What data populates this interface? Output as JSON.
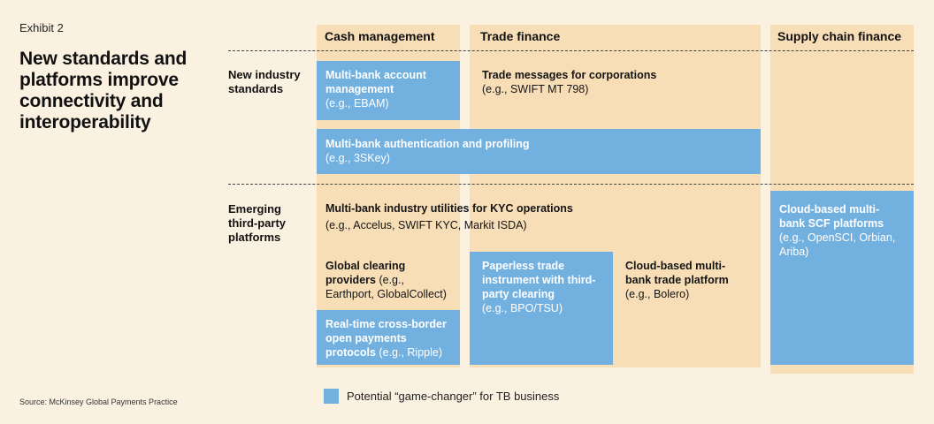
{
  "exhibit_label": "Exhibit 2",
  "title": "New standards and platforms improve connectivity and interoperability",
  "source": "Source: McKinsey Global Payments Practice",
  "columns": {
    "cash": "Cash management",
    "trade": "Trade finance",
    "scf": "Supply chain finance"
  },
  "rows": {
    "standards": "New industry standards",
    "platforms": "Emerging third-party platforms"
  },
  "cells": {
    "ebam": {
      "bold": "Multi-bank account management",
      "plain": "(e.g., EBAM)"
    },
    "trade_msgs": {
      "bold": "Trade messages for corporations",
      "plain": "(e.g., SWIFT MT 798)"
    },
    "auth": {
      "bold": "Multi-bank authentication and profiling",
      "plain": "(e.g., 3SKey)"
    },
    "kyc": {
      "bold": "Multi-bank industry utilities for KYC operations",
      "plain": "(e.g., Accelus, SWIFT KYC, Markit ISDA)"
    },
    "clearing": {
      "bold": "Global clearing providers",
      "plain1": " (e.g.,",
      "plain2": "Earthport, GlobalCollect)"
    },
    "realtime": {
      "bold": "Real-time cross-border open payments protocols",
      "plain": " (e.g., Ripple)"
    },
    "paperless": {
      "bold": "Paperless trade instrument with third-party clearing",
      "plain": "(e.g., BPO/TSU)"
    },
    "cloud_trade": {
      "bold": "Cloud-based multi-bank trade platform",
      "plain": "(e.g., Bolero)"
    },
    "cloud_scf": {
      "bold": "Cloud-based multi-bank SCF platforms",
      "plain": "(e.g., OpenSCI, Orbian, Ariba)"
    }
  },
  "legend": {
    "label": "Potential “game-changer” for TB business",
    "color": "#72b0e0"
  },
  "colors": {
    "background": "#fbf1e1",
    "column": "#f8deb7",
    "highlight": "#72b0e0"
  }
}
